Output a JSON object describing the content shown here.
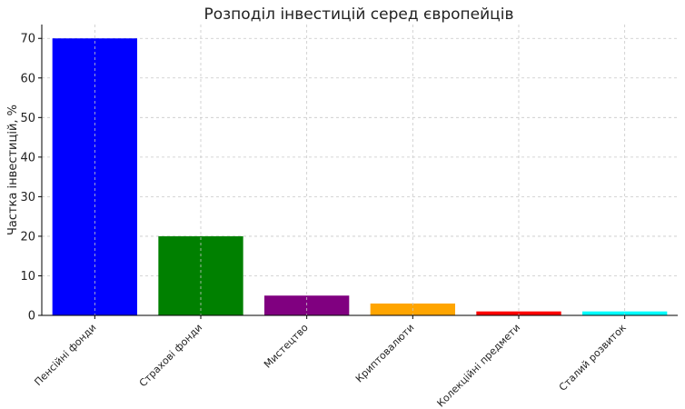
{
  "chart_data": {
    "type": "bar",
    "title": "Розподіл інвестицій серед європейців",
    "xlabel": "",
    "ylabel": "Частка інвестицій, %",
    "categories": [
      "Пенсійні фонди",
      "Страхові фонди",
      "Мистецтво",
      "Криптовалюти",
      "Колекційні предмети",
      "Сталий розвиток"
    ],
    "values": [
      70,
      20,
      5,
      3,
      1,
      1
    ],
    "colors": [
      "#0000ff",
      "#008000",
      "#800080",
      "#ffa500",
      "#ff0000",
      "#00ffff"
    ],
    "ylim": [
      0,
      73.5
    ],
    "yticks": [
      0,
      10,
      20,
      30,
      40,
      50,
      60,
      70
    ],
    "grid": true,
    "legend": "none"
  }
}
